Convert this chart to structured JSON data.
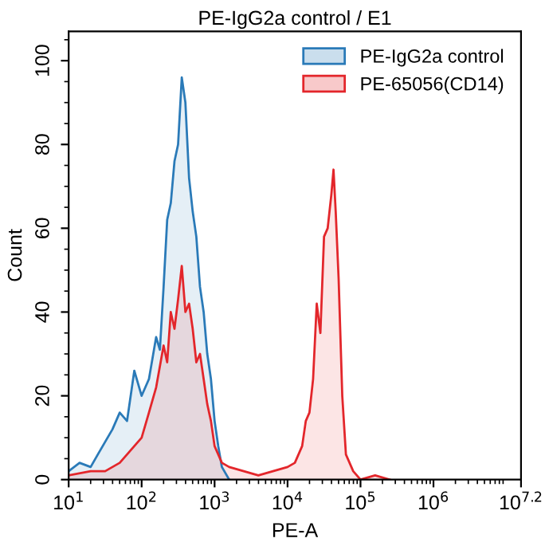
{
  "chart_data": {
    "type": "area",
    "title": "PE-IgG2a control / E1",
    "xlabel": "PE-A",
    "ylabel": "Count",
    "log": "x",
    "xlim": [
      10,
      15848932
    ],
    "xticks": [
      {
        "value": 10,
        "label": "10$^{1}$"
      },
      {
        "value": 100,
        "label": "10$^{2}$"
      },
      {
        "value": 1000,
        "label": "10$^{3}$"
      },
      {
        "value": 10000,
        "label": "10$^{4}$"
      },
      {
        "value": 100000,
        "label": "10$^{5}$"
      },
      {
        "value": 1000000,
        "label": "10$^{6}$"
      },
      {
        "value": 15848932,
        "label": "10$^{7.2}$"
      }
    ],
    "ylim": [
      0,
      107
    ],
    "yticks": [
      0,
      20,
      40,
      60,
      80,
      100
    ],
    "grid": false,
    "legend": "top right",
    "series": [
      {
        "name": "PE-IgG2a control",
        "color": "#2a7ab8",
        "x": [
          10,
          14.1,
          20,
          25.1,
          31.6,
          39.8,
          50.1,
          63.1,
          79.4,
          100,
          126,
          158,
          178,
          200,
          224,
          251,
          282,
          316,
          355,
          398,
          447,
          501,
          562,
          631,
          708,
          794,
          891,
          1000,
          1122,
          1259,
          1585
        ],
        "values": [
          2,
          4,
          3,
          6,
          9,
          12,
          16,
          14,
          26,
          20,
          24,
          34,
          31,
          46,
          62,
          66,
          76,
          80,
          96,
          90,
          72,
          64,
          58,
          46,
          40,
          30,
          24,
          14,
          8,
          3,
          0
        ]
      },
      {
        "name": "PE-65056(CD14)",
        "color": "#e3262b",
        "x": [
          10,
          20,
          31.6,
          50.1,
          63.1,
          79.4,
          100,
          126,
          158,
          200,
          224,
          251,
          282,
          316,
          355,
          398,
          447,
          501,
          562,
          631,
          708,
          794,
          891,
          1000,
          1259,
          1585,
          2512,
          3981,
          6310,
          10000,
          12589,
          15849,
          17783,
          19953,
          22387,
          25119,
          28184,
          31623,
          35481,
          39811,
          42658,
          45709,
          50119,
          56234,
          63096,
          79433,
          100000,
          158489,
          251189
        ],
        "values": [
          1,
          2,
          2,
          4,
          6,
          8,
          10,
          16,
          22,
          32,
          28,
          40,
          36,
          43,
          51,
          40,
          42,
          36,
          28,
          30,
          24,
          18,
          14,
          8,
          4,
          3,
          2,
          1,
          2,
          3,
          4,
          8,
          14,
          16,
          24,
          42,
          35,
          58,
          60,
          68,
          74,
          64,
          48,
          20,
          6,
          2,
          0,
          1,
          0
        ]
      }
    ]
  }
}
